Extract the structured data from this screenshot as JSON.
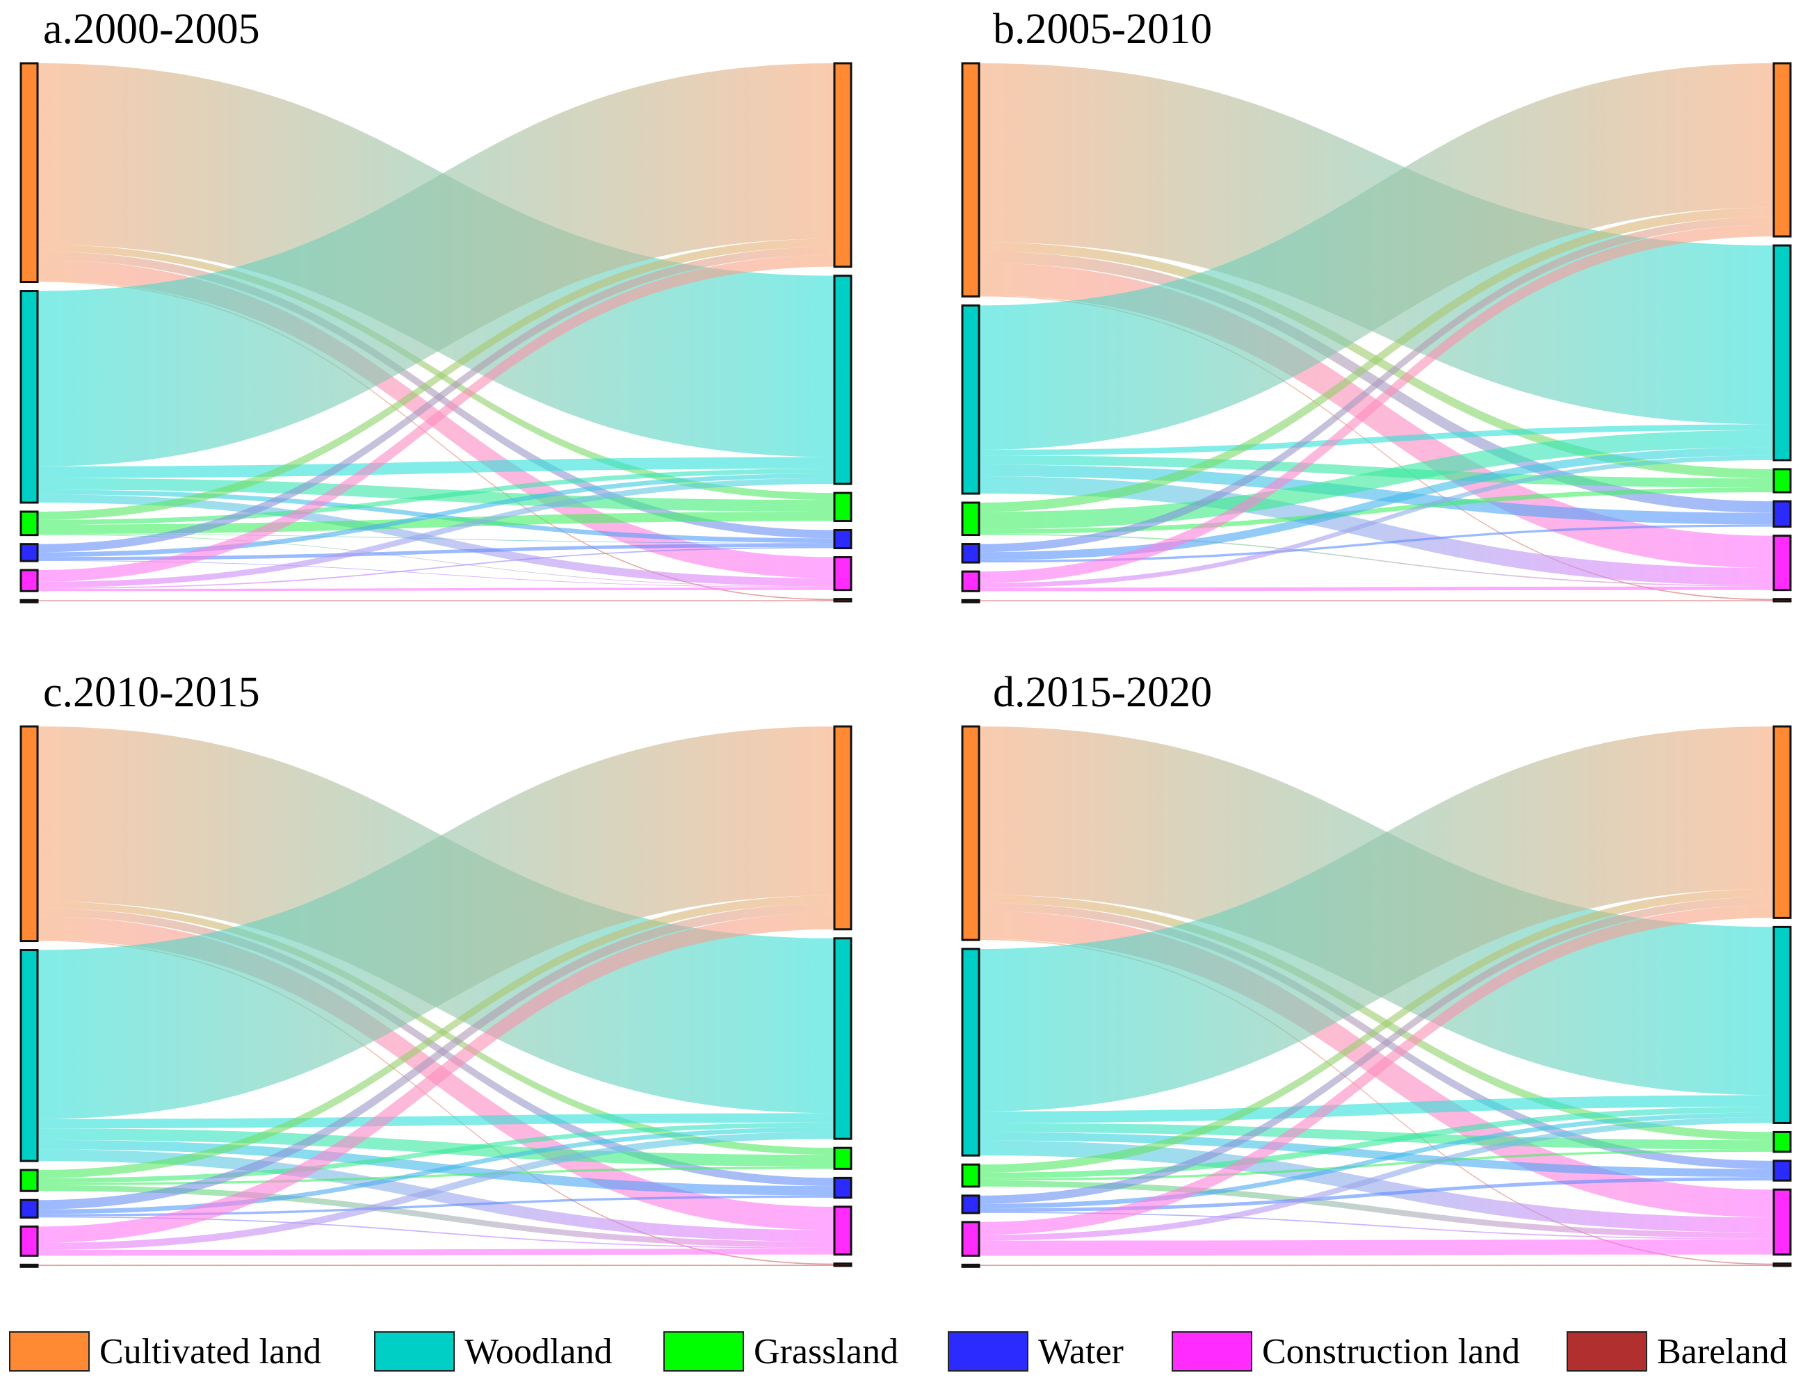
{
  "chart_data": {
    "type": "sankey",
    "nodes": [
      "Cultivated land",
      "Woodland",
      "Grassland",
      "Water",
      "Construction land",
      "Bareland"
    ],
    "colors": [
      "#ff8a33",
      "#00cfc6",
      "#00ff00",
      "#2b2bff",
      "#ff2bff",
      "#b22f2f"
    ],
    "link_colors": [
      "#f7a878",
      "#2ee0d8",
      "#40f060",
      "#5a8cff",
      "#ff70ff",
      "#d06060"
    ],
    "panels": [
      {
        "title": "a.2000-2005",
        "flows": [
          [
            0,
            1,
            155
          ],
          [
            0,
            2,
            6
          ],
          [
            0,
            3,
            7
          ],
          [
            0,
            4,
            18
          ],
          [
            0,
            5,
            1
          ],
          [
            1,
            0,
            150
          ],
          [
            1,
            1,
            10
          ],
          [
            1,
            2,
            10
          ],
          [
            1,
            3,
            4
          ],
          [
            1,
            4,
            7
          ],
          [
            2,
            0,
            7
          ],
          [
            2,
            1,
            4
          ],
          [
            2,
            2,
            8
          ],
          [
            2,
            3,
            0.5
          ],
          [
            2,
            4,
            0.5
          ],
          [
            3,
            0,
            7
          ],
          [
            3,
            1,
            4
          ],
          [
            3,
            3,
            3
          ],
          [
            3,
            4,
            0.5
          ],
          [
            4,
            0,
            10
          ],
          [
            4,
            1,
            5
          ],
          [
            4,
            3,
            1
          ],
          [
            4,
            4,
            2
          ],
          [
            5,
            5,
            1
          ]
        ]
      },
      {
        "title": "b.2005-2010",
        "flows": [
          [
            0,
            1,
            155
          ],
          [
            0,
            2,
            8
          ],
          [
            0,
            3,
            10
          ],
          [
            0,
            4,
            28
          ],
          [
            0,
            5,
            1
          ],
          [
            1,
            0,
            125
          ],
          [
            1,
            1,
            5
          ],
          [
            1,
            2,
            8
          ],
          [
            1,
            3,
            10
          ],
          [
            1,
            4,
            15
          ],
          [
            2,
            0,
            8
          ],
          [
            2,
            1,
            15
          ],
          [
            2,
            2,
            4
          ],
          [
            2,
            4,
            1
          ],
          [
            3,
            0,
            7
          ],
          [
            3,
            1,
            7
          ],
          [
            3,
            3,
            2
          ],
          [
            4,
            0,
            10
          ],
          [
            4,
            1,
            4
          ],
          [
            4,
            4,
            3
          ],
          [
            5,
            5,
            1
          ]
        ]
      },
      {
        "title": "c.2010-2015",
        "flows": [
          [
            0,
            1,
            150
          ],
          [
            0,
            2,
            6
          ],
          [
            0,
            3,
            7
          ],
          [
            0,
            4,
            20
          ],
          [
            0,
            5,
            1
          ],
          [
            1,
            0,
            145
          ],
          [
            1,
            1,
            8
          ],
          [
            1,
            2,
            10
          ],
          [
            1,
            3,
            8
          ],
          [
            1,
            4,
            10
          ],
          [
            2,
            0,
            7
          ],
          [
            2,
            1,
            4
          ],
          [
            2,
            2,
            2
          ],
          [
            2,
            4,
            5
          ],
          [
            3,
            0,
            8
          ],
          [
            3,
            1,
            4
          ],
          [
            3,
            3,
            2
          ],
          [
            3,
            4,
            1
          ],
          [
            4,
            0,
            14
          ],
          [
            4,
            1,
            6
          ],
          [
            4,
            4,
            5
          ],
          [
            5,
            5,
            1
          ]
        ]
      },
      {
        "title": "d.2015-2020",
        "flows": [
          [
            0,
            1,
            145
          ],
          [
            0,
            2,
            7
          ],
          [
            0,
            3,
            7
          ],
          [
            0,
            4,
            24
          ],
          [
            0,
            5,
            1
          ],
          [
            1,
            0,
            140
          ],
          [
            1,
            1,
            10
          ],
          [
            1,
            2,
            8
          ],
          [
            1,
            3,
            7
          ],
          [
            1,
            4,
            13
          ],
          [
            2,
            0,
            7
          ],
          [
            2,
            1,
            5
          ],
          [
            2,
            2,
            2
          ],
          [
            2,
            4,
            5
          ],
          [
            3,
            0,
            7
          ],
          [
            3,
            1,
            4
          ],
          [
            3,
            3,
            3
          ],
          [
            3,
            4,
            1
          ],
          [
            4,
            0,
            11
          ],
          [
            4,
            1,
            5
          ],
          [
            4,
            4,
            13
          ],
          [
            5,
            5,
            1
          ]
        ]
      }
    ],
    "legend_placement": "bottom"
  }
}
